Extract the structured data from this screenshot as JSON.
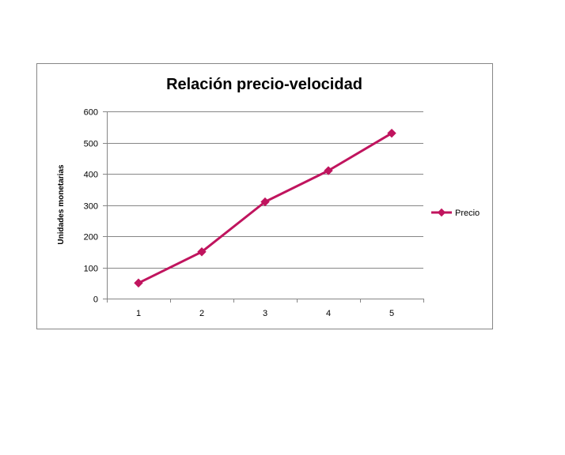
{
  "chart_data": {
    "type": "line",
    "title": "Relación precio-velocidad",
    "xlabel": "",
    "ylabel": "Unidades  monetarias",
    "categories": [
      "1",
      "2",
      "3",
      "4",
      "5"
    ],
    "series": [
      {
        "name": "Precio",
        "values": [
          50,
          150,
          310,
          410,
          530
        ],
        "color": "#C0145E",
        "marker": "diamond"
      }
    ],
    "ylim": [
      0,
      600
    ],
    "yticks": [
      "0",
      "100",
      "200",
      "300",
      "400",
      "500",
      "600"
    ],
    "grid": "horizontal",
    "legend_position": "right"
  }
}
